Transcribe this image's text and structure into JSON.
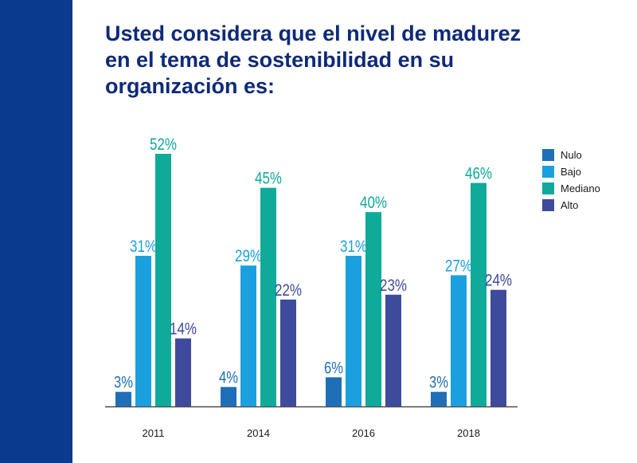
{
  "title_lines": [
    "Usted considera que el nivel de madurez",
    "en el tema de sostenibilidad en su",
    "organización es:"
  ],
  "colors": {
    "sidebar": "#0a3a8c",
    "title": "#0e2a78",
    "axis": "#4a4a4a",
    "Nulo": "#1f6fb8",
    "Bajo": "#1aa0de",
    "Mediano": "#0eaa9a",
    "Alto": "#3e4b9c"
  },
  "chart_data": {
    "type": "bar",
    "title": "Usted considera que el nivel de madurez en el tema de sostenibilidad en su organización es:",
    "categories": [
      "2011",
      "2014",
      "2016",
      "2018"
    ],
    "series": [
      {
        "name": "Nulo",
        "values": [
          3,
          4,
          6,
          3
        ],
        "labels": [
          "3%",
          "4%",
          "6%",
          "3%"
        ]
      },
      {
        "name": "Bajo",
        "values": [
          31,
          29,
          31,
          27
        ],
        "labels": [
          "31%",
          "29%",
          "31%",
          "27%"
        ]
      },
      {
        "name": "Mediano",
        "values": [
          52,
          45,
          40,
          46
        ],
        "labels": [
          "52%",
          "45%",
          "40%",
          "46%"
        ]
      },
      {
        "name": "Alto",
        "values": [
          14,
          22,
          23,
          24
        ],
        "labels": [
          "14%",
          "22%",
          "23%",
          "24%"
        ]
      }
    ],
    "xlabel": "",
    "ylabel": "",
    "ylim": [
      0,
      52
    ],
    "grid": false,
    "legend": "top-right"
  }
}
